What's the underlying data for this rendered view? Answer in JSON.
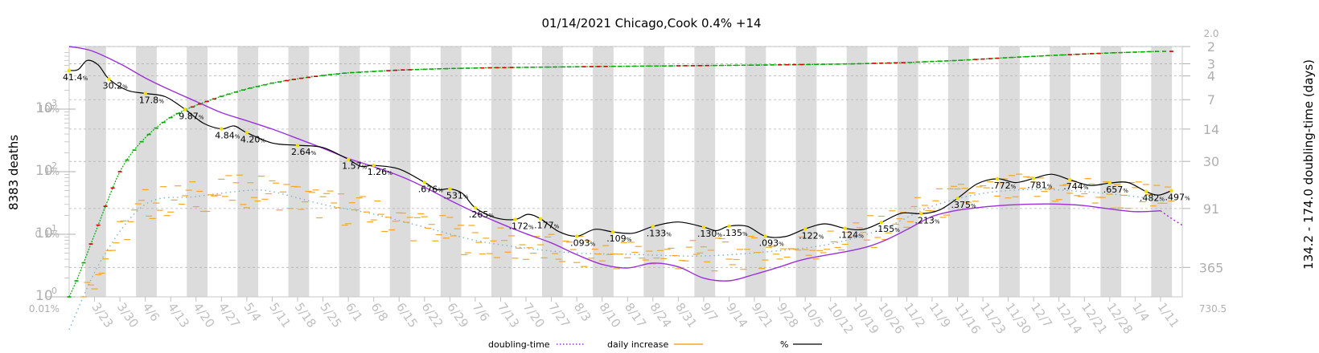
{
  "chart_data": {
    "type": "line",
    "title": "01/14/2021 Chicago,Cook 0.4% +14",
    "ylabel_left": "8383 deaths",
    "ylabel_right": "134.2 - 174.0 doubling-time (days)",
    "left_log_ticks": [
      "10",
      "10",
      "10",
      "10"
    ],
    "left_log_exponents": [
      "3",
      "2",
      "1",
      "0"
    ],
    "left_pct_ticks": [
      "10%",
      "1%",
      "0.1%",
      "0.01%"
    ],
    "right_ticks": [
      "2.0",
      "2",
      "3",
      "4",
      "7",
      "14",
      "30",
      "91",
      "365",
      "730.5"
    ],
    "x_dates": [
      "3/23",
      "3/30",
      "4/6",
      "4/13",
      "4/20",
      "4/27",
      "5/4",
      "5/11",
      "5/18",
      "5/25",
      "6/1",
      "6/8",
      "6/15",
      "6/22",
      "6/29",
      "7/6",
      "7/13",
      "7/20",
      "7/27",
      "8/3",
      "8/10",
      "8/17",
      "8/24",
      "8/31",
      "9/7",
      "9/14",
      "9/21",
      "9/28",
      "10/5",
      "10/12",
      "10/19",
      "10/26",
      "11/2",
      "11/9",
      "11/16",
      "11/23",
      "11/30",
      "12/7",
      "12/14",
      "12/21",
      "12/28",
      "1/4",
      "1/11"
    ],
    "cumulative_deaths": [
      {
        "date": "3/16",
        "value": 1
      },
      {
        "date": "3/18",
        "value": 1.8
      },
      {
        "date": "3/20",
        "value": 3.5
      },
      {
        "date": "3/22",
        "value": 7
      },
      {
        "date": "3/24",
        "value": 14
      },
      {
        "date": "3/26",
        "value": 28
      },
      {
        "date": "3/28",
        "value": 55
      },
      {
        "date": "3/30",
        "value": 100
      },
      {
        "date": "4/2",
        "value": 190
      },
      {
        "date": "4/6",
        "value": 350
      },
      {
        "date": "4/10",
        "value": 560
      },
      {
        "date": "4/14",
        "value": 800
      },
      {
        "date": "4/20",
        "value": 1150
      },
      {
        "date": "4/27",
        "value": 1600
      },
      {
        "date": "5/4",
        "value": 2100
      },
      {
        "date": "5/11",
        "value": 2600
      },
      {
        "date": "5/18",
        "value": 3050
      },
      {
        "date": "5/25",
        "value": 3450
      },
      {
        "date": "6/1",
        "value": 3800
      },
      {
        "date": "6/15",
        "value": 4200
      },
      {
        "date": "6/29",
        "value": 4450
      },
      {
        "date": "7/13",
        "value": 4600
      },
      {
        "date": "7/27",
        "value": 4700
      },
      {
        "date": "8/10",
        "value": 4800
      },
      {
        "date": "8/24",
        "value": 4880
      },
      {
        "date": "9/7",
        "value": 4960
      },
      {
        "date": "9/21",
        "value": 5050
      },
      {
        "date": "10/5",
        "value": 5150
      },
      {
        "date": "10/19",
        "value": 5300
      },
      {
        "date": "11/2",
        "value": 5550
      },
      {
        "date": "11/16",
        "value": 6000
      },
      {
        "date": "11/30",
        "value": 6650
      },
      {
        "date": "12/14",
        "value": 7300
      },
      {
        "date": "12/28",
        "value": 7900
      },
      {
        "date": "1/11",
        "value": 8383
      }
    ],
    "pct_growth": [
      {
        "date": "3/16",
        "value": 41.4
      },
      {
        "date": "3/21",
        "value": 60
      },
      {
        "date": "3/27",
        "value": 30.2
      },
      {
        "date": "4/6",
        "value": 17.8
      },
      {
        "date": "4/17",
        "value": 9.87
      },
      {
        "date": "4/27",
        "value": 4.84
      },
      {
        "date": "5/4",
        "value": 4.2
      },
      {
        "date": "5/18",
        "value": 2.64
      },
      {
        "date": "6/1",
        "value": 1.57
      },
      {
        "date": "6/8",
        "value": 1.26
      },
      {
        "date": "6/22",
        "value": 0.676
      },
      {
        "date": "6/29",
        "value": 0.531
      },
      {
        "date": "7/6",
        "value": 0.265
      },
      {
        "date": "7/17",
        "value": 0.172
      },
      {
        "date": "7/24",
        "value": 0.177
      },
      {
        "date": "8/3",
        "value": 0.093
      },
      {
        "date": "8/13",
        "value": 0.109
      },
      {
        "date": "8/24",
        "value": 0.133
      },
      {
        "date": "9/7",
        "value": 0.13
      },
      {
        "date": "9/14",
        "value": 0.135
      },
      {
        "date": "9/24",
        "value": 0.093
      },
      {
        "date": "10/5",
        "value": 0.122
      },
      {
        "date": "10/16",
        "value": 0.124
      },
      {
        "date": "10/26",
        "value": 0.155
      },
      {
        "date": "11/6",
        "value": 0.213
      },
      {
        "date": "11/16",
        "value": 0.375
      },
      {
        "date": "11/27",
        "value": 0.772
      },
      {
        "date": "12/7",
        "value": 0.781
      },
      {
        "date": "12/17",
        "value": 0.744
      },
      {
        "date": "12/28",
        "value": 0.657
      },
      {
        "date": "1/7",
        "value": 0.482
      },
      {
        "date": "1/14",
        "value": 0.497
      }
    ],
    "pct_labels": [
      {
        "date": "3/16",
        "value": 41.4,
        "text": "41.4"
      },
      {
        "date": "3/27",
        "value": 30.2,
        "text": "30.2"
      },
      {
        "date": "4/6",
        "value": 17.8,
        "text": "17.8"
      },
      {
        "date": "4/17",
        "value": 9.87,
        "text": "9.87"
      },
      {
        "date": "4/27",
        "value": 4.84,
        "text": "4.84"
      },
      {
        "date": "5/4",
        "value": 4.2,
        "text": "4.20"
      },
      {
        "date": "5/18",
        "value": 2.64,
        "text": "2.64"
      },
      {
        "date": "6/1",
        "value": 1.57,
        "text": "1.57"
      },
      {
        "date": "6/8",
        "value": 1.26,
        "text": "1.26"
      },
      {
        "date": "6/22",
        "value": 0.676,
        "text": ".676"
      },
      {
        "date": "6/29",
        "value": 0.531,
        "text": ".531"
      },
      {
        "date": "7/6",
        "value": 0.265,
        "text": ".265"
      },
      {
        "date": "7/17",
        "value": 0.172,
        "text": ".172"
      },
      {
        "date": "7/24",
        "value": 0.177,
        "text": ".177"
      },
      {
        "date": "8/3",
        "value": 0.093,
        "text": ".093"
      },
      {
        "date": "8/13",
        "value": 0.109,
        "text": ".109"
      },
      {
        "date": "8/24",
        "value": 0.133,
        "text": ".133"
      },
      {
        "date": "9/7",
        "value": 0.13,
        "text": ".130"
      },
      {
        "date": "9/14",
        "value": 0.135,
        "text": ".135"
      },
      {
        "date": "9/24",
        "value": 0.093,
        "text": ".093"
      },
      {
        "date": "10/5",
        "value": 0.122,
        "text": ".122"
      },
      {
        "date": "10/16",
        "value": 0.124,
        "text": ".124"
      },
      {
        "date": "10/26",
        "value": 0.155,
        "text": ".155"
      },
      {
        "date": "11/6",
        "value": 0.213,
        "text": ".213"
      },
      {
        "date": "11/16",
        "value": 0.375,
        "text": ".375"
      },
      {
        "date": "11/27",
        "value": 0.772,
        "text": ".772"
      },
      {
        "date": "12/7",
        "value": 0.781,
        "text": ".781"
      },
      {
        "date": "12/17",
        "value": 0.744,
        "text": ".744"
      },
      {
        "date": "12/28",
        "value": 0.657,
        "text": ".657"
      },
      {
        "date": "1/7",
        "value": 0.482,
        "text": ".482"
      },
      {
        "date": "1/14",
        "value": 0.497,
        "text": ".497"
      }
    ],
    "doubling_time": [
      {
        "date": "3/16",
        "value": 2.0
      },
      {
        "date": "3/22",
        "value": 2.2
      },
      {
        "date": "3/30",
        "value": 3.0
      },
      {
        "date": "4/6",
        "value": 4.2
      },
      {
        "date": "4/13",
        "value": 5.6
      },
      {
        "date": "4/20",
        "value": 7.3
      },
      {
        "date": "4/27",
        "value": 9.5
      },
      {
        "date": "5/4",
        "value": 11.5
      },
      {
        "date": "5/11",
        "value": 14
      },
      {
        "date": "5/18",
        "value": 17.5
      },
      {
        "date": "5/25",
        "value": 22
      },
      {
        "date": "6/1",
        "value": 28
      },
      {
        "date": "6/8",
        "value": 34
      },
      {
        "date": "6/15",
        "value": 42
      },
      {
        "date": "6/22",
        "value": 55
      },
      {
        "date": "6/29",
        "value": 75
      },
      {
        "date": "7/6",
        "value": 100
      },
      {
        "date": "7/13",
        "value": 130
      },
      {
        "date": "7/20",
        "value": 165
      },
      {
        "date": "7/27",
        "value": 205
      },
      {
        "date": "8/3",
        "value": 270
      },
      {
        "date": "8/10",
        "value": 340
      },
      {
        "date": "8/17",
        "value": 370
      },
      {
        "date": "8/24",
        "value": 330
      },
      {
        "date": "8/31",
        "value": 360
      },
      {
        "date": "9/7",
        "value": 470
      },
      {
        "date": "9/14",
        "value": 500
      },
      {
        "date": "9/21",
        "value": 430
      },
      {
        "date": "9/28",
        "value": 360
      },
      {
        "date": "10/5",
        "value": 300
      },
      {
        "date": "10/19",
        "value": 240
      },
      {
        "date": "10/26",
        "value": 200
      },
      {
        "date": "11/2",
        "value": 150
      },
      {
        "date": "11/9",
        "value": 110
      },
      {
        "date": "11/16",
        "value": 95
      },
      {
        "date": "11/23",
        "value": 88
      },
      {
        "date": "11/30",
        "value": 84
      },
      {
        "date": "12/7",
        "value": 82
      },
      {
        "date": "12/14",
        "value": 82
      },
      {
        "date": "12/21",
        "value": 85
      },
      {
        "date": "12/28",
        "value": 92
      },
      {
        "date": "1/4",
        "value": 98
      },
      {
        "date": "1/11",
        "value": 96
      }
    ],
    "doubling_time_projection": [
      {
        "date": "1/11",
        "value": 96
      },
      {
        "date": "1/14",
        "value": 115
      },
      {
        "date": "1/17",
        "value": 135
      }
    ],
    "daily_increase_trend": [
      {
        "date": "3/16",
        "value": 0.3
      },
      {
        "date": "3/25",
        "value": 4
      },
      {
        "date": "4/6",
        "value": 30
      },
      {
        "date": "4/20",
        "value": 40
      },
      {
        "date": "5/4",
        "value": 50
      },
      {
        "date": "5/11",
        "value": 48
      },
      {
        "date": "5/25",
        "value": 30
      },
      {
        "date": "6/8",
        "value": 21
      },
      {
        "date": "6/22",
        "value": 13
      },
      {
        "date": "7/6",
        "value": 8
      },
      {
        "date": "7/20",
        "value": 6
      },
      {
        "date": "8/3",
        "value": 5
      },
      {
        "date": "8/17",
        "value": 4.8
      },
      {
        "date": "9/7",
        "value": 4.5
      },
      {
        "date": "9/28",
        "value": 5.5
      },
      {
        "date": "10/12",
        "value": 7
      },
      {
        "date": "10/26",
        "value": 12
      },
      {
        "date": "11/9",
        "value": 28
      },
      {
        "date": "11/23",
        "value": 45
      },
      {
        "date": "12/7",
        "value": 52
      },
      {
        "date": "12/21",
        "value": 48
      },
      {
        "date": "1/4",
        "value": 40
      },
      {
        "date": "1/11",
        "value": 35
      }
    ],
    "legend": [
      {
        "name": "doubling-time",
        "color": "#9b30d9",
        "style": "dotted"
      },
      {
        "name": "daily increase",
        "color": "#f5a623",
        "style": "solid"
      },
      {
        "name": "%",
        "color": "#000000",
        "style": "solid"
      }
    ],
    "colors": {
      "cumulative": "#00aa00",
      "cumulative_alt": "#cc0000",
      "pct": "#000000",
      "doubling": "#9b30d9",
      "daily": "#f5a623",
      "trend": "#7fb3c8",
      "band": "#dcdcdc",
      "marker": "#f0e000"
    },
    "grid": true,
    "scale": "log",
    "left_range": [
      1,
      10000
    ],
    "pct_range": [
      0.01,
      100
    ],
    "right_range": [
      2,
      730.5
    ],
    "x_range": [
      "3/16",
      "1/17"
    ]
  }
}
